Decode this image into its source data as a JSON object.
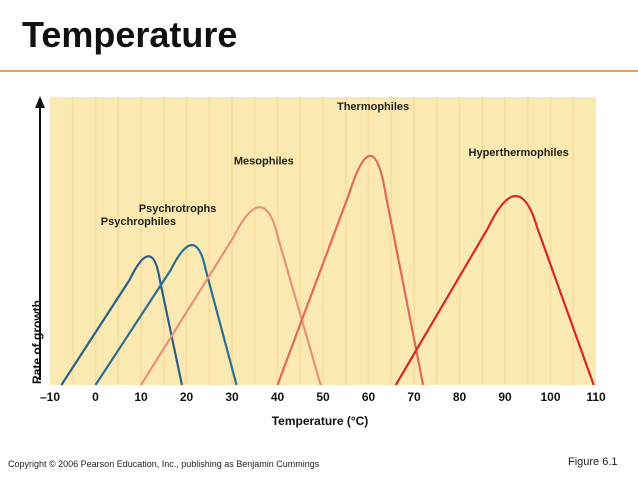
{
  "slide": {
    "title": "Temperature",
    "footer": "Copyright © 2006 Pearson Education, Inc., publishing as Benjamin Cummings",
    "figure_label": "Figure 6.1"
  },
  "chart_data": {
    "type": "line",
    "title": "",
    "xlabel": "Temperature (°C)",
    "ylabel": "Rate of growth",
    "xlim": [
      -10,
      110
    ],
    "x_ticks": [
      -10,
      0,
      10,
      20,
      30,
      40,
      50,
      60,
      70,
      80,
      90,
      100,
      110
    ],
    "x_tick_labels": [
      "–10",
      "0",
      "10",
      "20",
      "30",
      "40",
      "50",
      "60",
      "70",
      "80",
      "90",
      "100",
      "110"
    ],
    "ylim": [
      0,
      1
    ],
    "grid": "vertical",
    "background": "#fbe9b2",
    "series": [
      {
        "name": "Psychrophiles",
        "color": "#2a5f8a",
        "points": [
          [
            -7.5,
            0
          ],
          [
            12.5,
            0.55
          ],
          [
            19,
            0
          ]
        ]
      },
      {
        "name": "Psychrotrophs",
        "color": "#2a6f8f",
        "points": [
          [
            0,
            0
          ],
          [
            22,
            0.6
          ],
          [
            31,
            0
          ]
        ]
      },
      {
        "name": "Mesophiles",
        "color": "#e8917a",
        "points": [
          [
            10,
            0
          ],
          [
            37,
            0.77
          ],
          [
            49.5,
            0
          ]
        ]
      },
      {
        "name": "Thermophiles",
        "color": "#e06a5a",
        "points": [
          [
            40,
            0
          ],
          [
            61,
            1.0
          ],
          [
            72,
            0
          ]
        ]
      },
      {
        "name": "Hyperthermophiles",
        "color": "#d7262c",
        "points": [
          [
            66,
            0
          ],
          [
            93,
            0.82
          ],
          [
            109.5,
            0
          ]
        ]
      }
    ]
  }
}
